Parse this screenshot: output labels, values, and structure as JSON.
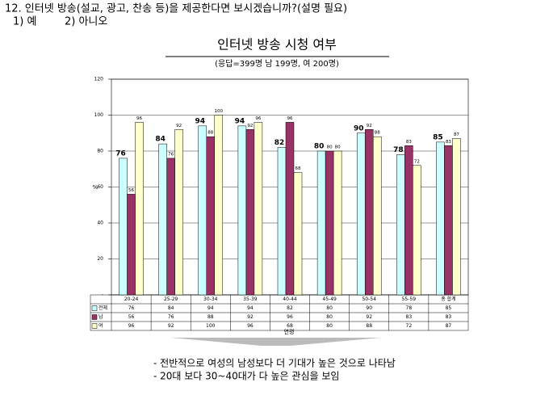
{
  "header": {
    "question": "12. 인터넷 방송(설교, 광고, 찬송 등)을 제공한다면 보시겠습니까?(설명 필요)",
    "options": [
      "1) 예",
      "2) 아니오"
    ]
  },
  "chart_data": {
    "type": "bar",
    "title": "인터넷 방송 시청 여부",
    "subtitle": "(응답=399명  남 199명, 여 200명)",
    "x_label": "연령",
    "y_label": "%",
    "categories": [
      "20-24",
      "25-29",
      "30-34",
      "35-39",
      "40-44",
      "45-49",
      "50-54",
      "55-59",
      "총 합계"
    ],
    "series": [
      {
        "name": "전체",
        "color": "#ccffff",
        "values": [
          76,
          84,
          94,
          94,
          82,
          80,
          90,
          78,
          85
        ]
      },
      {
        "name": "남",
        "color": "#993366",
        "values": [
          56,
          76,
          88,
          92,
          96,
          80,
          92,
          83,
          83
        ]
      },
      {
        "name": "여",
        "color": "#ffffcc",
        "values": [
          96,
          92,
          100,
          96,
          68,
          80,
          88,
          72,
          87
        ]
      }
    ],
    "ylim": [
      0,
      120
    ],
    "yticks": [
      {
        "value": 0,
        "label": "-"
      },
      20,
      40,
      60,
      80,
      100,
      120
    ],
    "grid": true
  },
  "notes": [
    "- 전반적으로 여성의 남성보다 더 기대가 높은 것으로 나타남",
    "- 20대 보다 30~40대가 다 높은 관심을 보임"
  ]
}
